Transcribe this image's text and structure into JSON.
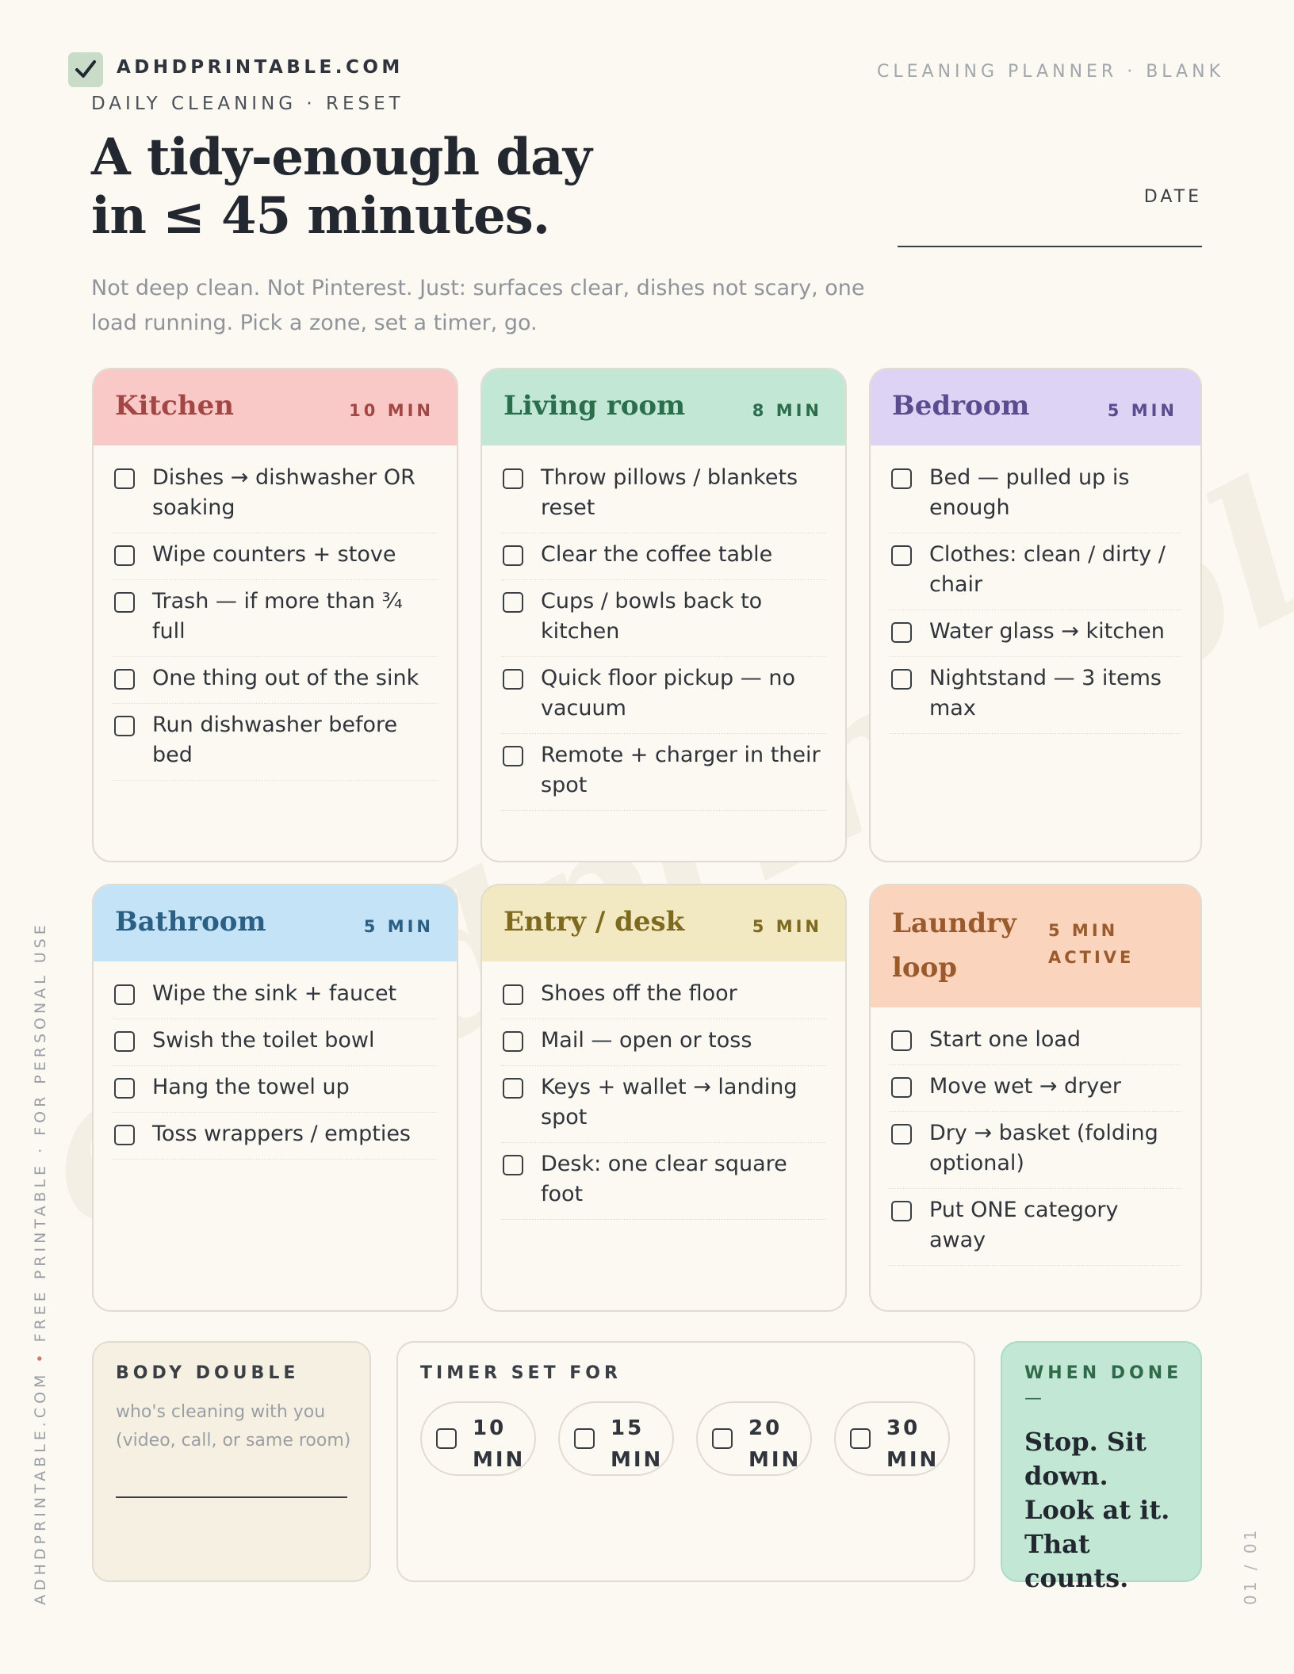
{
  "header": {
    "brand": "ADHDPRINTABLE.COM",
    "subtitle": "DAILY CLEANING · RESET",
    "top_right": "CLEANING PLANNER · BLANK",
    "title_line1": "A tidy-enough day",
    "title_line2": "in ≤ 45 minutes.",
    "date_label": "DATE",
    "intro": "Not deep clean. Not Pinterest. Just: surfaces clear, dishes not scary, one load running. Pick a zone, set a timer, go."
  },
  "watermark": "adhdprintable.com",
  "colors": {
    "background": "#fcf9f2",
    "kitchen": "#f8c9c6",
    "living": "#c2e8d5",
    "bedroom": "#ddd4f5",
    "bathroom": "#c4e3f6",
    "entry": "#f2e8c2",
    "laundry": "#fbd4bd",
    "when_done": "#c2e8d5",
    "body_double": "#f6f0e2"
  },
  "zones": [
    {
      "title": "Kitchen",
      "time": "10 MIN",
      "items": [
        "Dishes → dishwasher OR soaking",
        "Wipe counters + stove",
        "Trash — if more than ¾ full",
        "One thing out of the sink",
        "Run dishwasher before bed"
      ]
    },
    {
      "title": "Living room",
      "time": "8 MIN",
      "items": [
        "Throw pillows / blankets reset",
        "Clear the coffee table",
        "Cups / bowls back to kitchen",
        "Quick floor pickup — no vacuum",
        "Remote + charger in their spot"
      ]
    },
    {
      "title": "Bedroom",
      "time": "5 MIN",
      "items": [
        "Bed — pulled up is enough",
        "Clothes: clean / dirty / chair",
        "Water glass → kitchen",
        "Nightstand — 3 items max"
      ]
    },
    {
      "title": "Bathroom",
      "time": "5 MIN",
      "items": [
        "Wipe the sink + faucet",
        "Swish the toilet bowl",
        "Hang the towel up",
        "Toss wrappers / empties"
      ]
    },
    {
      "title": "Entry / desk",
      "time": "5 MIN",
      "items": [
        "Shoes off the floor",
        "Mail — open or toss",
        "Keys + wallet → landing spot",
        "Desk: one clear square foot"
      ]
    },
    {
      "title_line1": "Laundry",
      "title_line2": "loop",
      "time_line1": "5 MIN",
      "time_line2": "ACTIVE",
      "items": [
        "Start one load",
        "Move wet → dryer",
        "Dry → basket (folding optional)",
        "Put ONE category away"
      ]
    }
  ],
  "body_double": {
    "label": "BODY DOUBLE",
    "sub": "who's cleaning with you (video, call, or same room)"
  },
  "timer": {
    "label": "TIMER SET FOR",
    "options": [
      {
        "num": "10",
        "unit": "MIN"
      },
      {
        "num": "15",
        "unit": "MIN"
      },
      {
        "num": "20",
        "unit": "MIN"
      },
      {
        "num": "30",
        "unit": "MIN"
      }
    ]
  },
  "when_done": {
    "label": "WHEN DONE",
    "dash": "—",
    "text": "Stop. Sit down. Look at it. That counts."
  },
  "footer": {
    "side_left_a": "ADHDPRINTABLE.COM",
    "side_dot": "•",
    "side_left_b": "FREE PRINTABLE · FOR PERSONAL USE",
    "page": "01 / 01"
  }
}
